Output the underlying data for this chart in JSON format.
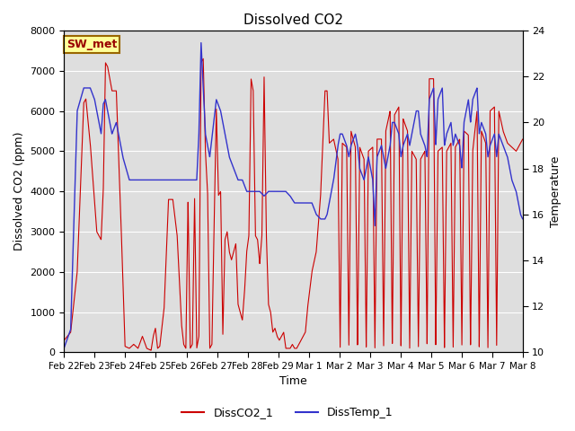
{
  "title": "Dissolved CO2",
  "ylabel_left": "Dissolved CO2 (ppm)",
  "ylabel_right": "Temperature",
  "xlabel": "Time",
  "ylim_left": [
    0,
    8000
  ],
  "ylim_right": [
    10,
    24
  ],
  "annotation": "SW_met",
  "legend": [
    "DissCO2_1",
    "DissTemp_1"
  ],
  "legend_colors": [
    "#cc0000",
    "#0000cc"
  ],
  "bg_color": "#e0e0e0",
  "dates": [
    "Feb 22",
    "Feb 23",
    "Feb 24",
    "Feb 25",
    "Feb 26",
    "Feb 27",
    "Feb 28",
    "Feb 29",
    "Mar 1",
    "Mar 2",
    "Mar 3",
    "Mar 4",
    "Mar 5",
    "Mar 6",
    "Mar 7",
    "Mar 8"
  ]
}
